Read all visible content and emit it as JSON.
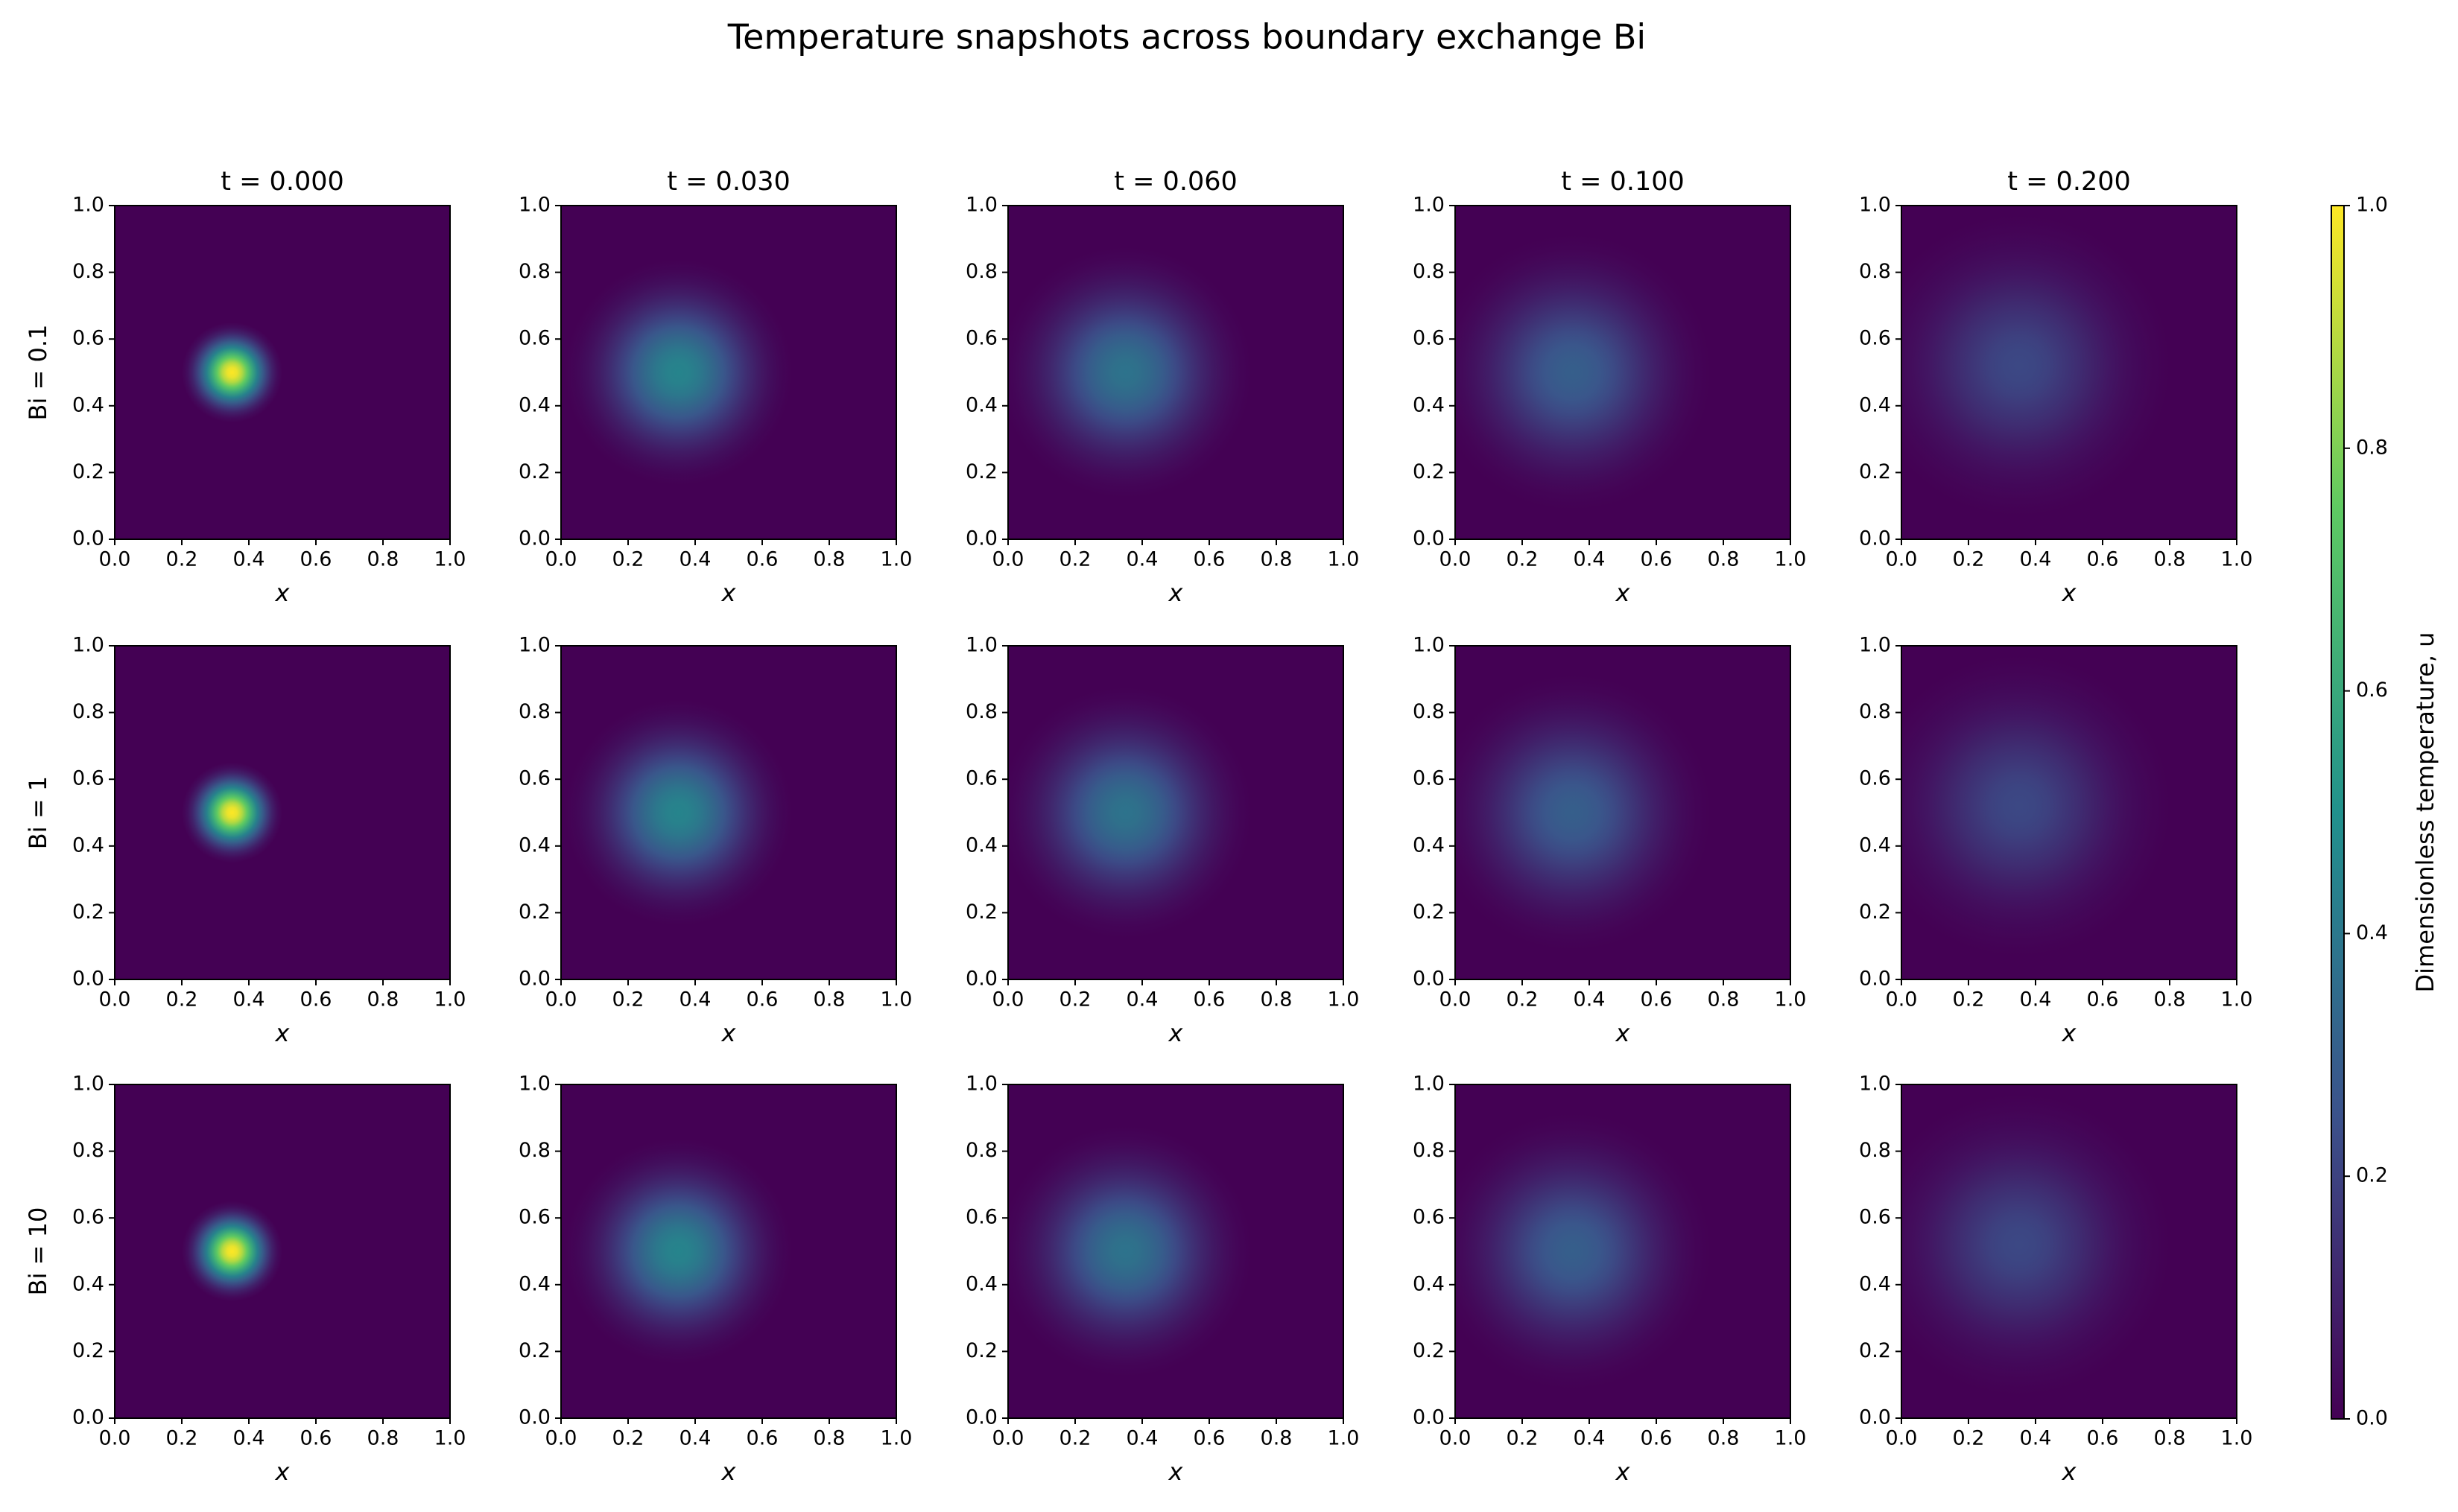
{
  "title": "Temperature snapshots across boundary exchange Bi",
  "colorbar": {
    "label": "Dimensionless temperature, u",
    "ylim": [
      0,
      1
    ],
    "yticks": [
      {
        "value": 0,
        "label": "0.0"
      },
      {
        "value": 0.2,
        "label": "0.2"
      },
      {
        "value": 0.4,
        "label": "0.4"
      },
      {
        "value": 0.6,
        "label": "0.6"
      },
      {
        "value": 0.8,
        "label": "0.8"
      },
      {
        "value": 1,
        "label": "1.0"
      }
    ],
    "colormap": [
      "#440154",
      "#3b528b",
      "#21918c",
      "#5ec962",
      "#fde725"
    ]
  },
  "chart_data": [
    {
      "type": "heatmap",
      "title": "t = 0.000",
      "ylabel": "Bi = 0.1",
      "xlabel": "x",
      "xlim": [
        0,
        1
      ],
      "ylim": [
        0,
        1
      ],
      "xticks": [
        {
          "value": 0,
          "label": "0.0"
        },
        {
          "value": 0.2,
          "label": "0.2"
        },
        {
          "value": 0.4,
          "label": "0.4"
        },
        {
          "value": 0.6,
          "label": "0.6"
        },
        {
          "value": 0.8,
          "label": "0.8"
        },
        {
          "value": 1,
          "label": "1.0"
        }
      ],
      "yticks": [
        {
          "value": 0,
          "label": "0.0"
        },
        {
          "value": 0.2,
          "label": "0.2"
        },
        {
          "value": 0.4,
          "label": "0.4"
        },
        {
          "value": 0.6,
          "label": "0.6"
        },
        {
          "value": 0.8,
          "label": "0.8"
        },
        {
          "value": 1,
          "label": "1.0"
        }
      ],
      "center": [
        0.35,
        0.5
      ],
      "radius": 0.12,
      "peak": 1.0
    },
    {
      "type": "heatmap",
      "title": "t = 0.030",
      "xlabel": "x",
      "xlim": [
        0,
        1
      ],
      "ylim": [
        0,
        1
      ],
      "xticks": [
        {
          "value": 0,
          "label": "0.0"
        },
        {
          "value": 0.2,
          "label": "0.2"
        },
        {
          "value": 0.4,
          "label": "0.4"
        },
        {
          "value": 0.6,
          "label": "0.6"
        },
        {
          "value": 0.8,
          "label": "0.8"
        },
        {
          "value": 1,
          "label": "1.0"
        }
      ],
      "yticks": [
        {
          "value": 0,
          "label": "0.0"
        },
        {
          "value": 0.2,
          "label": "0.2"
        },
        {
          "value": 0.4,
          "label": "0.4"
        },
        {
          "value": 0.6,
          "label": "0.6"
        },
        {
          "value": 0.8,
          "label": "0.8"
        },
        {
          "value": 1,
          "label": "1.0"
        }
      ],
      "center": [
        0.35,
        0.5
      ],
      "radius": 0.27,
      "peak": 0.45
    },
    {
      "type": "heatmap",
      "title": "t = 0.060",
      "xlabel": "x",
      "xlim": [
        0,
        1
      ],
      "ylim": [
        0,
        1
      ],
      "xticks": [
        {
          "value": 0,
          "label": "0.0"
        },
        {
          "value": 0.2,
          "label": "0.2"
        },
        {
          "value": 0.4,
          "label": "0.4"
        },
        {
          "value": 0.6,
          "label": "0.6"
        },
        {
          "value": 0.8,
          "label": "0.8"
        },
        {
          "value": 1,
          "label": "1.0"
        }
      ],
      "yticks": [
        {
          "value": 0,
          "label": "0.0"
        },
        {
          "value": 0.2,
          "label": "0.2"
        },
        {
          "value": 0.4,
          "label": "0.4"
        },
        {
          "value": 0.6,
          "label": "0.6"
        },
        {
          "value": 0.8,
          "label": "0.8"
        },
        {
          "value": 1,
          "label": "1.0"
        }
      ],
      "center": [
        0.35,
        0.5
      ],
      "radius": 0.3,
      "peak": 0.38
    },
    {
      "type": "heatmap",
      "title": "t = 0.100",
      "xlabel": "x",
      "xlim": [
        0,
        1
      ],
      "ylim": [
        0,
        1
      ],
      "xticks": [
        {
          "value": 0,
          "label": "0.0"
        },
        {
          "value": 0.2,
          "label": "0.2"
        },
        {
          "value": 0.4,
          "label": "0.4"
        },
        {
          "value": 0.6,
          "label": "0.6"
        },
        {
          "value": 0.8,
          "label": "0.8"
        },
        {
          "value": 1,
          "label": "1.0"
        }
      ],
      "yticks": [
        {
          "value": 0,
          "label": "0.0"
        },
        {
          "value": 0.2,
          "label": "0.2"
        },
        {
          "value": 0.4,
          "label": "0.4"
        },
        {
          "value": 0.6,
          "label": "0.6"
        },
        {
          "value": 0.8,
          "label": "0.8"
        },
        {
          "value": 1,
          "label": "1.0"
        }
      ],
      "center": [
        0.35,
        0.5
      ],
      "radius": 0.33,
      "peak": 0.3
    },
    {
      "type": "heatmap",
      "title": "t = 0.200",
      "xlabel": "x",
      "xlim": [
        0,
        1
      ],
      "ylim": [
        0,
        1
      ],
      "xticks": [
        {
          "value": 0,
          "label": "0.0"
        },
        {
          "value": 0.2,
          "label": "0.2"
        },
        {
          "value": 0.4,
          "label": "0.4"
        },
        {
          "value": 0.6,
          "label": "0.6"
        },
        {
          "value": 0.8,
          "label": "0.8"
        },
        {
          "value": 1,
          "label": "1.0"
        }
      ],
      "yticks": [
        {
          "value": 0,
          "label": "0.0"
        },
        {
          "value": 0.2,
          "label": "0.2"
        },
        {
          "value": 0.4,
          "label": "0.4"
        },
        {
          "value": 0.6,
          "label": "0.6"
        },
        {
          "value": 0.8,
          "label": "0.8"
        },
        {
          "value": 1,
          "label": "1.0"
        }
      ],
      "center": [
        0.35,
        0.52
      ],
      "radius": 0.36,
      "peak": 0.22
    },
    {
      "type": "heatmap",
      "ylabel": "Bi = 1",
      "xlabel": "x",
      "xlim": [
        0,
        1
      ],
      "ylim": [
        0,
        1
      ],
      "xticks": [
        {
          "value": 0,
          "label": "0.0"
        },
        {
          "value": 0.2,
          "label": "0.2"
        },
        {
          "value": 0.4,
          "label": "0.4"
        },
        {
          "value": 0.6,
          "label": "0.6"
        },
        {
          "value": 0.8,
          "label": "0.8"
        },
        {
          "value": 1,
          "label": "1.0"
        }
      ],
      "yticks": [
        {
          "value": 0,
          "label": "0.0"
        },
        {
          "value": 0.2,
          "label": "0.2"
        },
        {
          "value": 0.4,
          "label": "0.4"
        },
        {
          "value": 0.6,
          "label": "0.6"
        },
        {
          "value": 0.8,
          "label": "0.8"
        },
        {
          "value": 1,
          "label": "1.0"
        }
      ],
      "center": [
        0.35,
        0.5
      ],
      "radius": 0.12,
      "peak": 1.0
    },
    {
      "type": "heatmap",
      "xlabel": "x",
      "xlim": [
        0,
        1
      ],
      "ylim": [
        0,
        1
      ],
      "xticks": [
        {
          "value": 0,
          "label": "0.0"
        },
        {
          "value": 0.2,
          "label": "0.2"
        },
        {
          "value": 0.4,
          "label": "0.4"
        },
        {
          "value": 0.6,
          "label": "0.6"
        },
        {
          "value": 0.8,
          "label": "0.8"
        },
        {
          "value": 1,
          "label": "1.0"
        }
      ],
      "yticks": [
        {
          "value": 0,
          "label": "0.0"
        },
        {
          "value": 0.2,
          "label": "0.2"
        },
        {
          "value": 0.4,
          "label": "0.4"
        },
        {
          "value": 0.6,
          "label": "0.6"
        },
        {
          "value": 0.8,
          "label": "0.8"
        },
        {
          "value": 1,
          "label": "1.0"
        }
      ],
      "center": [
        0.35,
        0.5
      ],
      "radius": 0.27,
      "peak": 0.45
    },
    {
      "type": "heatmap",
      "xlabel": "x",
      "xlim": [
        0,
        1
      ],
      "ylim": [
        0,
        1
      ],
      "xticks": [
        {
          "value": 0,
          "label": "0.0"
        },
        {
          "value": 0.2,
          "label": "0.2"
        },
        {
          "value": 0.4,
          "label": "0.4"
        },
        {
          "value": 0.6,
          "label": "0.6"
        },
        {
          "value": 0.8,
          "label": "0.8"
        },
        {
          "value": 1,
          "label": "1.0"
        }
      ],
      "yticks": [
        {
          "value": 0,
          "label": "0.0"
        },
        {
          "value": 0.2,
          "label": "0.2"
        },
        {
          "value": 0.4,
          "label": "0.4"
        },
        {
          "value": 0.6,
          "label": "0.6"
        },
        {
          "value": 0.8,
          "label": "0.8"
        },
        {
          "value": 1,
          "label": "1.0"
        }
      ],
      "center": [
        0.35,
        0.5
      ],
      "radius": 0.3,
      "peak": 0.38
    },
    {
      "type": "heatmap",
      "xlabel": "x",
      "xlim": [
        0,
        1
      ],
      "ylim": [
        0,
        1
      ],
      "xticks": [
        {
          "value": 0,
          "label": "0.0"
        },
        {
          "value": 0.2,
          "label": "0.2"
        },
        {
          "value": 0.4,
          "label": "0.4"
        },
        {
          "value": 0.6,
          "label": "0.6"
        },
        {
          "value": 0.8,
          "label": "0.8"
        },
        {
          "value": 1,
          "label": "1.0"
        }
      ],
      "yticks": [
        {
          "value": 0,
          "label": "0.0"
        },
        {
          "value": 0.2,
          "label": "0.2"
        },
        {
          "value": 0.4,
          "label": "0.4"
        },
        {
          "value": 0.6,
          "label": "0.6"
        },
        {
          "value": 0.8,
          "label": "0.8"
        },
        {
          "value": 1,
          "label": "1.0"
        }
      ],
      "center": [
        0.35,
        0.5
      ],
      "radius": 0.33,
      "peak": 0.3
    },
    {
      "type": "heatmap",
      "xlabel": "x",
      "xlim": [
        0,
        1
      ],
      "ylim": [
        0,
        1
      ],
      "xticks": [
        {
          "value": 0,
          "label": "0.0"
        },
        {
          "value": 0.2,
          "label": "0.2"
        },
        {
          "value": 0.4,
          "label": "0.4"
        },
        {
          "value": 0.6,
          "label": "0.6"
        },
        {
          "value": 0.8,
          "label": "0.8"
        },
        {
          "value": 1,
          "label": "1.0"
        }
      ],
      "yticks": [
        {
          "value": 0,
          "label": "0.0"
        },
        {
          "value": 0.2,
          "label": "0.2"
        },
        {
          "value": 0.4,
          "label": "0.4"
        },
        {
          "value": 0.6,
          "label": "0.6"
        },
        {
          "value": 0.8,
          "label": "0.8"
        },
        {
          "value": 1,
          "label": "1.0"
        }
      ],
      "center": [
        0.35,
        0.52
      ],
      "radius": 0.36,
      "peak": 0.22
    },
    {
      "type": "heatmap",
      "ylabel": "Bi = 10",
      "xlabel": "x",
      "xlim": [
        0,
        1
      ],
      "ylim": [
        0,
        1
      ],
      "xticks": [
        {
          "value": 0,
          "label": "0.0"
        },
        {
          "value": 0.2,
          "label": "0.2"
        },
        {
          "value": 0.4,
          "label": "0.4"
        },
        {
          "value": 0.6,
          "label": "0.6"
        },
        {
          "value": 0.8,
          "label": "0.8"
        },
        {
          "value": 1,
          "label": "1.0"
        }
      ],
      "yticks": [
        {
          "value": 0,
          "label": "0.0"
        },
        {
          "value": 0.2,
          "label": "0.2"
        },
        {
          "value": 0.4,
          "label": "0.4"
        },
        {
          "value": 0.6,
          "label": "0.6"
        },
        {
          "value": 0.8,
          "label": "0.8"
        },
        {
          "value": 1,
          "label": "1.0"
        }
      ],
      "center": [
        0.35,
        0.5
      ],
      "radius": 0.12,
      "peak": 1.0
    },
    {
      "type": "heatmap",
      "xlabel": "x",
      "xlim": [
        0,
        1
      ],
      "ylim": [
        0,
        1
      ],
      "xticks": [
        {
          "value": 0,
          "label": "0.0"
        },
        {
          "value": 0.2,
          "label": "0.2"
        },
        {
          "value": 0.4,
          "label": "0.4"
        },
        {
          "value": 0.6,
          "label": "0.6"
        },
        {
          "value": 0.8,
          "label": "0.8"
        },
        {
          "value": 1,
          "label": "1.0"
        }
      ],
      "yticks": [
        {
          "value": 0,
          "label": "0.0"
        },
        {
          "value": 0.2,
          "label": "0.2"
        },
        {
          "value": 0.4,
          "label": "0.4"
        },
        {
          "value": 0.6,
          "label": "0.6"
        },
        {
          "value": 0.8,
          "label": "0.8"
        },
        {
          "value": 1,
          "label": "1.0"
        }
      ],
      "center": [
        0.35,
        0.5
      ],
      "radius": 0.27,
      "peak": 0.45
    },
    {
      "type": "heatmap",
      "xlabel": "x",
      "xlim": [
        0,
        1
      ],
      "ylim": [
        0,
        1
      ],
      "xticks": [
        {
          "value": 0,
          "label": "0.0"
        },
        {
          "value": 0.2,
          "label": "0.2"
        },
        {
          "value": 0.4,
          "label": "0.4"
        },
        {
          "value": 0.6,
          "label": "0.6"
        },
        {
          "value": 0.8,
          "label": "0.8"
        },
        {
          "value": 1,
          "label": "1.0"
        }
      ],
      "yticks": [
        {
          "value": 0,
          "label": "0.0"
        },
        {
          "value": 0.2,
          "label": "0.2"
        },
        {
          "value": 0.4,
          "label": "0.4"
        },
        {
          "value": 0.6,
          "label": "0.6"
        },
        {
          "value": 0.8,
          "label": "0.8"
        },
        {
          "value": 1,
          "label": "1.0"
        }
      ],
      "center": [
        0.35,
        0.5
      ],
      "radius": 0.3,
      "peak": 0.38
    },
    {
      "type": "heatmap",
      "xlabel": "x",
      "xlim": [
        0,
        1
      ],
      "ylim": [
        0,
        1
      ],
      "xticks": [
        {
          "value": 0,
          "label": "0.0"
        },
        {
          "value": 0.2,
          "label": "0.2"
        },
        {
          "value": 0.4,
          "label": "0.4"
        },
        {
          "value": 0.6,
          "label": "0.6"
        },
        {
          "value": 0.8,
          "label": "0.8"
        },
        {
          "value": 1,
          "label": "1.0"
        }
      ],
      "yticks": [
        {
          "value": 0,
          "label": "0.0"
        },
        {
          "value": 0.2,
          "label": "0.2"
        },
        {
          "value": 0.4,
          "label": "0.4"
        },
        {
          "value": 0.6,
          "label": "0.6"
        },
        {
          "value": 0.8,
          "label": "0.8"
        },
        {
          "value": 1,
          "label": "1.0"
        }
      ],
      "center": [
        0.35,
        0.5
      ],
      "radius": 0.33,
      "peak": 0.3
    },
    {
      "type": "heatmap",
      "xlabel": "x",
      "xlim": [
        0,
        1
      ],
      "ylim": [
        0,
        1
      ],
      "xticks": [
        {
          "value": 0,
          "label": "0.0"
        },
        {
          "value": 0.2,
          "label": "0.2"
        },
        {
          "value": 0.4,
          "label": "0.4"
        },
        {
          "value": 0.6,
          "label": "0.6"
        },
        {
          "value": 0.8,
          "label": "0.8"
        },
        {
          "value": 1,
          "label": "1.0"
        }
      ],
      "yticks": [
        {
          "value": 0,
          "label": "0.0"
        },
        {
          "value": 0.2,
          "label": "0.2"
        },
        {
          "value": 0.4,
          "label": "0.4"
        },
        {
          "value": 0.6,
          "label": "0.6"
        },
        {
          "value": 0.8,
          "label": "0.8"
        },
        {
          "value": 1,
          "label": "1.0"
        }
      ],
      "center": [
        0.35,
        0.52
      ],
      "radius": 0.36,
      "peak": 0.22
    }
  ]
}
